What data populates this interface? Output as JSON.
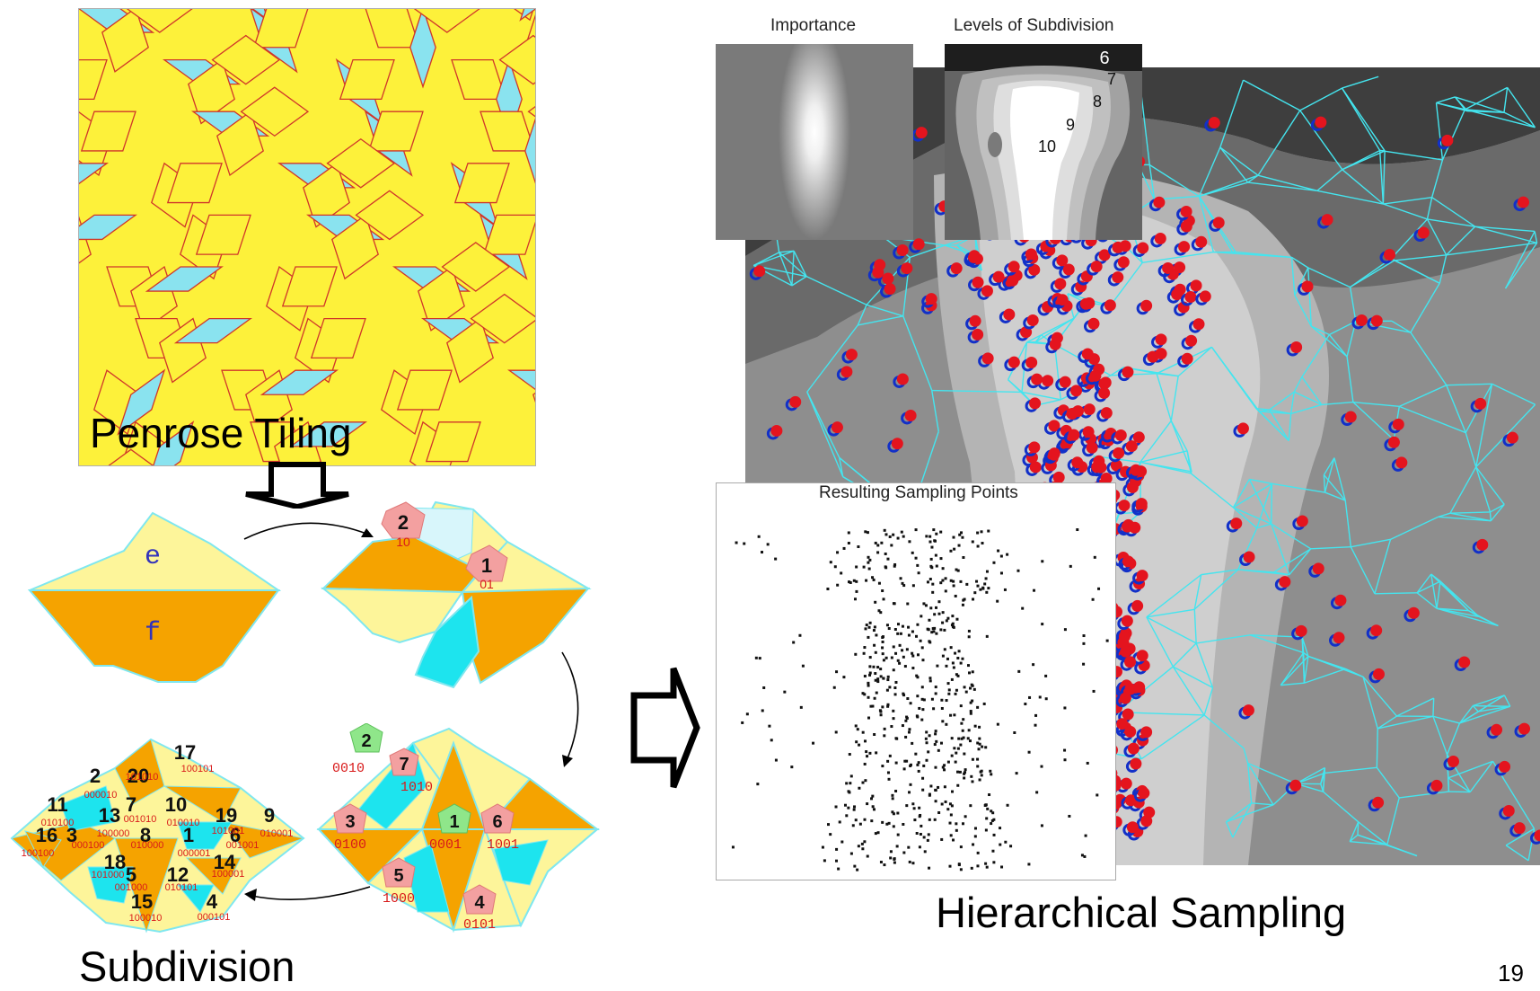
{
  "captions": {
    "penrose": "Penrose Tiling",
    "subdivision": "Subdivision",
    "hierarchical": "Hierarchical Sampling",
    "page_number": "19"
  },
  "panels": {
    "importance": "Importance",
    "levels": "Levels of Subdivision",
    "resulting": "Resulting Sampling Points"
  },
  "levels": [
    "6",
    "7",
    "8",
    "9",
    "10"
  ],
  "tiles": {
    "e": "e",
    "f": "f"
  },
  "stage2": [
    {
      "n": "2",
      "code": "10"
    },
    {
      "n": "1",
      "code": "01"
    }
  ],
  "stage3": [
    {
      "n": "2",
      "code": "0010"
    },
    {
      "n": "7",
      "code": "1010"
    },
    {
      "n": "3",
      "code": "0100"
    },
    {
      "n": "1",
      "code": "0001"
    },
    {
      "n": "6",
      "code": "1001"
    },
    {
      "n": "5",
      "code": "1000"
    },
    {
      "n": "4",
      "code": "0101"
    }
  ],
  "stage4": [
    {
      "n": "17",
      "code": "100101"
    },
    {
      "n": "2",
      "code": "000010"
    },
    {
      "n": "20",
      "code": "101010"
    },
    {
      "n": "11",
      "code": "010100"
    },
    {
      "n": "7",
      "code": "001010"
    },
    {
      "n": "10",
      "code": "010010"
    },
    {
      "n": "19",
      "code": "101001"
    },
    {
      "n": "9",
      "code": "010001"
    },
    {
      "n": "13",
      "code": "100000"
    },
    {
      "n": "16",
      "code": "100100"
    },
    {
      "n": "3",
      "code": "000100"
    },
    {
      "n": "8",
      "code": "010000"
    },
    {
      "n": "1",
      "code": "000001"
    },
    {
      "n": "6",
      "code": "001001"
    },
    {
      "n": "14",
      "code": "100001"
    },
    {
      "n": "18",
      "code": "101000"
    },
    {
      "n": "5",
      "code": "001000"
    },
    {
      "n": "12",
      "code": "010101"
    },
    {
      "n": "15",
      "code": "100010"
    },
    {
      "n": "4",
      "code": "000101"
    }
  ]
}
